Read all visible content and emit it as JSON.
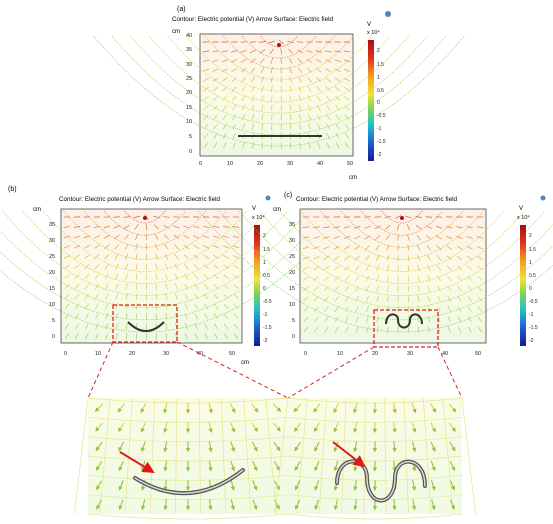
{
  "panels": [
    {
      "label": "(a)",
      "title": "Contour: Electric potential (V) Arrow Surface: Electric field",
      "x_unit": "cm",
      "y_unit": "cm",
      "x_ticks": [
        "0",
        "10",
        "20",
        "30",
        "40",
        "50"
      ],
      "y_ticks": [
        "0",
        "5",
        "10",
        "15",
        "20",
        "25",
        "30",
        "35",
        "40"
      ],
      "shape": "straight"
    },
    {
      "label": "(b)",
      "title": "Contour: Electric potential (V) Arrow Surface: Electric field",
      "x_unit": "cm",
      "y_unit": "cm",
      "x_ticks": [
        "0",
        "10",
        "20",
        "30",
        "40",
        "50"
      ],
      "y_ticks": [
        "0",
        "5",
        "10",
        "15",
        "20",
        "25",
        "30",
        "35"
      ],
      "shape": "arc"
    },
    {
      "label": "(c)",
      "title": "Contour: Electric potential (V) Arrow Surface: Electric field",
      "x_unit": "",
      "y_unit": "cm",
      "x_ticks": [
        "0",
        "10",
        "20",
        "30",
        "40",
        "50"
      ],
      "y_ticks": [
        "0",
        "5",
        "10",
        "15",
        "20",
        "25",
        "30",
        "35"
      ],
      "shape": "wave"
    }
  ],
  "colorbar": {
    "unit": "V",
    "multiplier": "x 10⁴",
    "ticks": [
      "2",
      "1.5",
      "1",
      "0.5",
      "0",
      "-0.5",
      "-1",
      "-1.5",
      "-2"
    ]
  },
  "colors": {
    "high": "#d4232a",
    "mid": "#9ed84a",
    "low": "#1d22a8",
    "zoom_box": "#e02020"
  }
}
